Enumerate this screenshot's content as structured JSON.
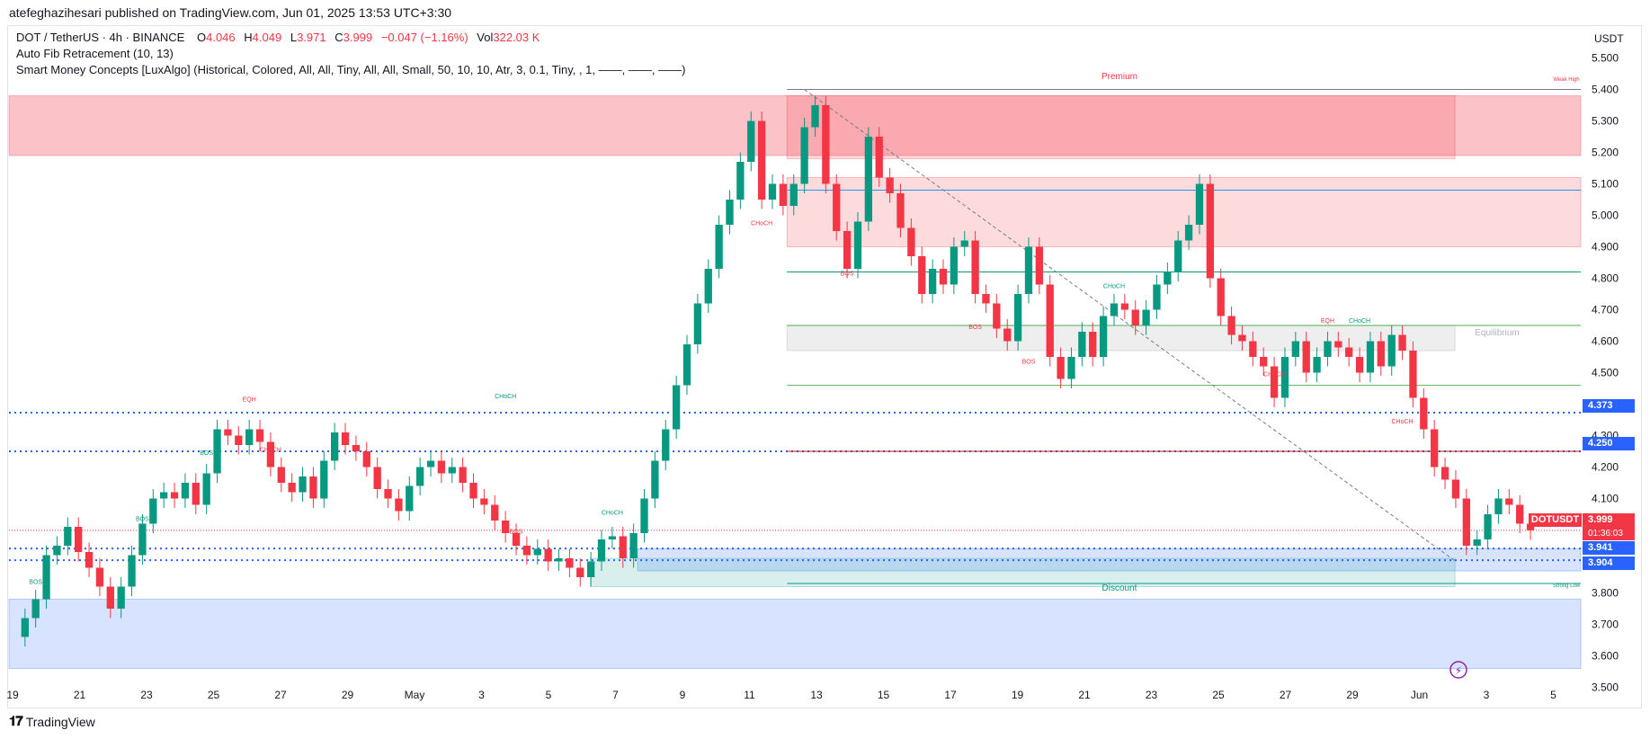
{
  "header": {
    "publisher": "atefeghazihesari published on TradingView.com, Jun 01, 2025 13:53 UTC+3:30"
  },
  "legend": {
    "symbol": "DOT / TetherUS · 4h · BINANCE",
    "o_label": "O",
    "o": "4.046",
    "h_label": "H",
    "h": "4.049",
    "l_label": "L",
    "l": "3.971",
    "c_label": "C",
    "c": "3.999",
    "chg": "−0.047 (−1.16%)",
    "vol_label": "Vol",
    "vol": "322.03 K",
    "indicator1": "Auto Fib Retracement (10, 13)",
    "indicator2": "Smart Money Concepts [LuxAlgo] (Historical, Colored, All, All, Tiny, All, All, Small, 50, 10, 10, Atr, 3, 0.1, Tiny, , 1, ——, ——, ——)"
  },
  "axis": {
    "currency": "USDT"
  },
  "price_tags": [
    {
      "value": "4.373",
      "color": "#2962ff"
    },
    {
      "value": "4.250",
      "color": "#2962ff"
    },
    {
      "symbol": "DOTUSDT",
      "value": "3.999",
      "countdown": "01:36:03",
      "color": "#f23645"
    },
    {
      "value": "3.941",
      "color": "#2962ff"
    },
    {
      "value": "3.904",
      "color": "#2962ff"
    }
  ],
  "zone_labels": {
    "premium": "Premium",
    "equilibrium": "Equilibrium",
    "discount": "Discount",
    "weak_high": "Weak High",
    "strong_low": "Strong Low"
  },
  "footer": {
    "logo": "TradingView"
  },
  "colors": {
    "up": "#089981",
    "down": "#f23645",
    "fib": "#2962ff",
    "accent": "#8e24aa"
  },
  "chart_data": {
    "type": "candlestick",
    "timeframe": "4h",
    "ylim": [
      3.45,
      5.55
    ],
    "y_ticks": [
      "5.500",
      "5.400",
      "5.300",
      "5.200",
      "5.100",
      "5.000",
      "4.900",
      "4.800",
      "4.700",
      "4.600",
      "4.500",
      "4.400",
      "4.300",
      "4.200",
      "4.100",
      "4.000",
      "3.900",
      "3.800",
      "3.700",
      "3.600",
      "3.500"
    ],
    "x_ticks": [
      "19",
      "21",
      "23",
      "25",
      "27",
      "29",
      "May",
      "3",
      "5",
      "7",
      "9",
      "11",
      "13",
      "15",
      "17",
      "19",
      "21",
      "23",
      "25",
      "27",
      "29",
      "Jun",
      "3",
      "5"
    ],
    "price_path": [
      [
        0,
        3.66
      ],
      [
        1,
        3.72
      ],
      [
        2,
        3.78
      ],
      [
        3,
        3.92
      ],
      [
        4,
        3.95
      ],
      [
        5,
        4.01
      ],
      [
        6,
        3.93
      ],
      [
        7,
        3.88
      ],
      [
        8,
        3.82
      ],
      [
        9,
        3.75
      ],
      [
        10,
        3.82
      ],
      [
        11,
        3.92
      ],
      [
        12,
        4.02
      ],
      [
        13,
        4.1
      ],
      [
        14,
        4.12
      ],
      [
        15,
        4.1
      ],
      [
        16,
        4.15
      ],
      [
        17,
        4.08
      ],
      [
        18,
        4.18
      ],
      [
        19,
        4.32
      ],
      [
        20,
        4.3
      ],
      [
        21,
        4.27
      ],
      [
        22,
        4.32
      ],
      [
        23,
        4.28
      ],
      [
        24,
        4.2
      ],
      [
        25,
        4.15
      ],
      [
        26,
        4.12
      ],
      [
        27,
        4.17
      ],
      [
        28,
        4.1
      ],
      [
        29,
        4.22
      ],
      [
        30,
        4.31
      ],
      [
        31,
        4.27
      ],
      [
        32,
        4.25
      ],
      [
        33,
        4.2
      ],
      [
        34,
        4.13
      ],
      [
        35,
        4.1
      ],
      [
        36,
        4.06
      ],
      [
        37,
        4.14
      ],
      [
        38,
        4.2
      ],
      [
        39,
        4.22
      ],
      [
        40,
        4.18
      ],
      [
        41,
        4.2
      ],
      [
        42,
        4.15
      ],
      [
        43,
        4.1
      ],
      [
        44,
        4.08
      ],
      [
        45,
        4.03
      ],
      [
        46,
        3.99
      ],
      [
        47,
        3.95
      ],
      [
        48,
        3.92
      ],
      [
        49,
        3.94
      ],
      [
        50,
        3.9
      ],
      [
        51,
        3.91
      ],
      [
        52,
        3.88
      ],
      [
        53,
        3.85
      ],
      [
        54,
        3.9
      ],
      [
        55,
        3.97
      ],
      [
        56,
        3.98
      ],
      [
        57,
        3.91
      ],
      [
        58,
        3.99
      ],
      [
        59,
        4.1
      ],
      [
        60,
        4.22
      ],
      [
        61,
        4.32
      ],
      [
        62,
        4.46
      ],
      [
        63,
        4.59
      ],
      [
        64,
        4.72
      ],
      [
        65,
        4.83
      ],
      [
        66,
        4.97
      ],
      [
        67,
        5.05
      ],
      [
        68,
        5.17
      ],
      [
        69,
        5.3
      ],
      [
        70,
        5.05
      ],
      [
        71,
        5.1
      ],
      [
        72,
        5.03
      ],
      [
        73,
        5.1
      ],
      [
        74,
        5.28
      ],
      [
        75,
        5.35
      ],
      [
        76,
        5.1
      ],
      [
        77,
        4.95
      ],
      [
        78,
        4.83
      ],
      [
        79,
        4.98
      ],
      [
        80,
        5.25
      ],
      [
        81,
        5.12
      ],
      [
        82,
        5.07
      ],
      [
        83,
        4.96
      ],
      [
        84,
        4.87
      ],
      [
        85,
        4.75
      ],
      [
        86,
        4.83
      ],
      [
        87,
        4.78
      ],
      [
        88,
        4.9
      ],
      [
        89,
        4.92
      ],
      [
        90,
        4.75
      ],
      [
        91,
        4.72
      ],
      [
        92,
        4.64
      ],
      [
        93,
        4.6
      ],
      [
        94,
        4.75
      ],
      [
        95,
        4.9
      ],
      [
        96,
        4.78
      ],
      [
        97,
        4.55
      ],
      [
        98,
        4.48
      ],
      [
        99,
        4.55
      ],
      [
        100,
        4.63
      ],
      [
        101,
        4.55
      ],
      [
        102,
        4.68
      ],
      [
        103,
        4.72
      ],
      [
        104,
        4.7
      ],
      [
        105,
        4.65
      ],
      [
        106,
        4.7
      ],
      [
        107,
        4.78
      ],
      [
        108,
        4.82
      ],
      [
        109,
        4.92
      ],
      [
        110,
        4.97
      ],
      [
        111,
        5.1
      ],
      [
        112,
        4.8
      ],
      [
        113,
        4.68
      ],
      [
        114,
        4.62
      ],
      [
        115,
        4.6
      ],
      [
        116,
        4.55
      ],
      [
        117,
        4.52
      ],
      [
        118,
        4.42
      ],
      [
        119,
        4.55
      ],
      [
        120,
        4.6
      ],
      [
        121,
        4.5
      ],
      [
        122,
        4.55
      ],
      [
        123,
        4.6
      ],
      [
        124,
        4.58
      ],
      [
        125,
        4.55
      ],
      [
        126,
        4.5
      ],
      [
        127,
        4.6
      ],
      [
        128,
        4.52
      ],
      [
        129,
        4.62
      ],
      [
        130,
        4.57
      ],
      [
        131,
        4.42
      ],
      [
        132,
        4.32
      ],
      [
        133,
        4.2
      ],
      [
        134,
        4.16
      ],
      [
        135,
        4.1
      ],
      [
        136,
        3.95
      ],
      [
        137,
        3.97
      ],
      [
        138,
        4.05
      ],
      [
        139,
        4.1
      ],
      [
        140,
        4.08
      ],
      [
        141,
        4.02
      ],
      [
        142,
        3.999
      ]
    ],
    "horizontal_levels": [
      {
        "price": 4.373,
        "style": "dotted",
        "color": "#2962ff"
      },
      {
        "price": 4.25,
        "style": "dotted",
        "color": "#2962ff"
      },
      {
        "price": 3.941,
        "style": "dotted",
        "color": "#2962ff"
      },
      {
        "price": 3.904,
        "style": "dotted",
        "color": "#2962ff"
      },
      {
        "price": 5.4,
        "style": "solid",
        "color": "#787b86"
      },
      {
        "price": 5.08,
        "style": "solid",
        "color": "#2196f3"
      },
      {
        "price": 4.82,
        "style": "solid",
        "color": "#089981"
      },
      {
        "price": 4.65,
        "style": "solid",
        "color": "#4caf50"
      },
      {
        "price": 4.46,
        "style": "solid",
        "color": "#66bb6a"
      },
      {
        "price": 4.25,
        "style": "solid",
        "color": "#b71c1c"
      },
      {
        "price": 3.83,
        "style": "solid",
        "color": "#089981"
      }
    ],
    "zones": [
      {
        "name": "supply-zone-left",
        "from": 5.19,
        "to": 5.38,
        "color": "#f23645"
      },
      {
        "name": "premium-zone",
        "from": 5.18,
        "to": 5.38,
        "color": "#f23645"
      },
      {
        "name": "supply-zone-upper",
        "from": 4.9,
        "to": 5.12,
        "color": "#f23645"
      },
      {
        "name": "equilibrium-zone",
        "from": 4.57,
        "to": 4.65,
        "color": "#9e9e9e"
      },
      {
        "name": "demand-zone-upper",
        "from": 3.87,
        "to": 3.94,
        "color": "#2962ff"
      },
      {
        "name": "discount-zone",
        "from": 3.82,
        "to": 3.91,
        "color": "#26a69a"
      },
      {
        "name": "demand-zone-lower",
        "from": 3.56,
        "to": 3.78,
        "color": "#2962ff"
      }
    ],
    "structure_labels": [
      {
        "text": "BOS",
        "price": 3.82,
        "color": "#089981"
      },
      {
        "text": "BOS",
        "price": 4.02,
        "color": "#089981"
      },
      {
        "text": "BOS",
        "price": 4.23,
        "color": "#089981"
      },
      {
        "text": "EQH",
        "price": 4.4,
        "color": "#f23645"
      },
      {
        "text": "CHoCH",
        "price": 4.24,
        "color": "#f23645"
      },
      {
        "text": "CHoCH",
        "price": 4.41,
        "color": "#089981"
      },
      {
        "text": "BOS",
        "price": 3.98,
        "color": "#f23645"
      },
      {
        "text": "CHoCH",
        "price": 4.04,
        "color": "#089981"
      },
      {
        "text": "CHoCH",
        "price": 4.96,
        "color": "#f23645"
      },
      {
        "text": "BOS",
        "price": 4.8,
        "color": "#f23645"
      },
      {
        "text": "BOS",
        "price": 4.63,
        "color": "#f23645"
      },
      {
        "text": "BOS",
        "price": 4.52,
        "color": "#f23645"
      },
      {
        "text": "CHoCH",
        "price": 4.76,
        "color": "#089981"
      },
      {
        "text": "CHoCH",
        "price": 4.48,
        "color": "#f23645"
      },
      {
        "text": "EQH",
        "price": 4.65,
        "color": "#f23645"
      },
      {
        "text": "CHoCH",
        "price": 4.65,
        "color": "#089981"
      },
      {
        "text": "CHoCH",
        "price": 4.33,
        "color": "#f23645"
      }
    ]
  }
}
